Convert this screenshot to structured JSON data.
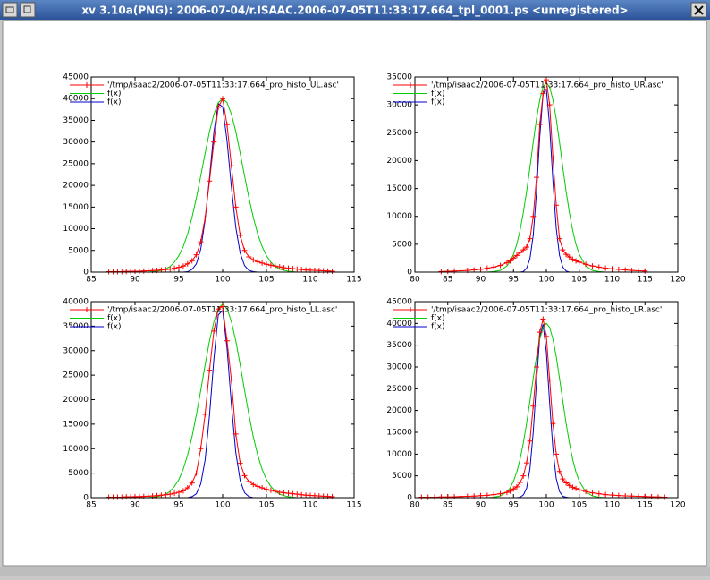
{
  "window": {
    "title": "xv 3.10a(PNG): 2006-07-04/r.ISAAC.2006-07-05T11:33:17.664_tpl_0001.ps <unregistered>"
  },
  "chart_data": [
    {
      "type": "line",
      "xlim": [
        85,
        115
      ],
      "xticks": [
        85,
        90,
        95,
        100,
        105,
        110,
        115
      ],
      "ylim": [
        0,
        45000
      ],
      "yticks": [
        0,
        5000,
        10000,
        15000,
        20000,
        25000,
        30000,
        35000,
        40000,
        45000
      ],
      "x": [
        87,
        87.5,
        88,
        88.5,
        89,
        89.5,
        90,
        90.5,
        91,
        91.5,
        92,
        92.5,
        93,
        93.5,
        94,
        94.5,
        95,
        95.5,
        96,
        96.5,
        97,
        97.5,
        98,
        98.5,
        99,
        99.5,
        100,
        100.5,
        101,
        101.5,
        102,
        102.5,
        103,
        103.5,
        104,
        104.5,
        105,
        105.5,
        106,
        106.5,
        107,
        107.5,
        108,
        108.5,
        109,
        109.5,
        110,
        110.5,
        111,
        111.5,
        112,
        112.5
      ],
      "series": [
        {
          "name": "'/tmp/isaac2/2006-07-05T11:33:17.664_pro_histo_UL.asc'",
          "color": "#ff0000",
          "marker": "+",
          "values": [
            100,
            100,
            100,
            100,
            150,
            150,
            200,
            200,
            250,
            300,
            350,
            400,
            500,
            600,
            700,
            900,
            1100,
            1400,
            1900,
            2600,
            4000,
            7000,
            12500,
            21000,
            30000,
            38000,
            40000,
            34000,
            24500,
            15000,
            8500,
            5000,
            3500,
            2800,
            2400,
            2100,
            1800,
            1600,
            1400,
            1200,
            1000,
            900,
            800,
            700,
            600,
            500,
            450,
            400,
            350,
            300,
            250,
            200
          ]
        },
        {
          "name": "f(x)",
          "color": "#00cc00",
          "values": [
            0,
            0,
            0,
            0,
            0,
            0,
            0,
            0,
            0,
            0,
            100,
            200,
            400,
            700,
            1300,
            2300,
            3800,
            5900,
            8800,
            12600,
            17100,
            22200,
            27400,
            32400,
            36400,
            39100,
            40000,
            39100,
            36400,
            32400,
            27400,
            22200,
            17100,
            12600,
            8800,
            5900,
            3800,
            2300,
            1300,
            700,
            400,
            200,
            100,
            0,
            0,
            0,
            0,
            0,
            0,
            0,
            0,
            0
          ]
        },
        {
          "name": "f(x)",
          "color": "#0000cc",
          "values": [
            0,
            0,
            0,
            0,
            0,
            0,
            0,
            0,
            0,
            0,
            0,
            0,
            0,
            0,
            0,
            0,
            0,
            0,
            100,
            600,
            1900,
            5300,
            12000,
            21800,
            32300,
            38900,
            38100,
            30300,
            19600,
            10300,
            4400,
            1500,
            400,
            100,
            0,
            0,
            0,
            0,
            0,
            0,
            0,
            0,
            0,
            0,
            0,
            0,
            0,
            0,
            0,
            0,
            0,
            0
          ]
        }
      ]
    },
    {
      "type": "line",
      "xlim": [
        80,
        120
      ],
      "xticks": [
        80,
        85,
        90,
        95,
        100,
        105,
        110,
        115,
        120
      ],
      "ylim": [
        0,
        35000
      ],
      "yticks": [
        0,
        5000,
        10000,
        15000,
        20000,
        25000,
        30000,
        35000
      ],
      "x": [
        84,
        85,
        86,
        87,
        88,
        89,
        90,
        91,
        92,
        93,
        94,
        94.5,
        95,
        95.5,
        96,
        96.5,
        97,
        97.5,
        98,
        98.5,
        99,
        99.5,
        100,
        100.5,
        101,
        101.5,
        102,
        102.5,
        103,
        103.5,
        104,
        104.5,
        105,
        106,
        107,
        108,
        109,
        110,
        111,
        112,
        113,
        114,
        115
      ],
      "series": [
        {
          "name": "'/tmp/isaac2/2006-07-05T11:33:17.664_pro_histo_UR.asc'",
          "color": "#ff0000",
          "marker": "+",
          "values": [
            100,
            150,
            200,
            250,
            300,
            400,
            500,
            700,
            900,
            1200,
            1700,
            2000,
            2500,
            3000,
            3500,
            4000,
            4500,
            6000,
            10000,
            17000,
            26500,
            32000,
            34500,
            30000,
            20500,
            12000,
            6000,
            4000,
            3200,
            2700,
            2300,
            2000,
            1800,
            1400,
            1100,
            900,
            700,
            600,
            500,
            400,
            300,
            250,
            200
          ]
        },
        {
          "name": "f(x)",
          "color": "#00cc00",
          "values": [
            0,
            0,
            0,
            0,
            0,
            0,
            0,
            0,
            100,
            300,
            1100,
            1900,
            3200,
            5000,
            7500,
            10700,
            14500,
            18800,
            23300,
            27500,
            30900,
            33200,
            34000,
            33200,
            30900,
            27500,
            23300,
            18800,
            14500,
            10700,
            7500,
            5000,
            3200,
            1100,
            300,
            100,
            0,
            0,
            0,
            0,
            0,
            0,
            0
          ]
        },
        {
          "name": "f(x)",
          "color": "#0000cc",
          "values": [
            0,
            0,
            0,
            0,
            0,
            0,
            0,
            0,
            0,
            0,
            0,
            0,
            0,
            0,
            0,
            100,
            700,
            2400,
            6600,
            14400,
            24300,
            32000,
            32800,
            26200,
            16300,
            7900,
            3000,
            900,
            200,
            0,
            0,
            0,
            0,
            0,
            0,
            0,
            0,
            0,
            0,
            0,
            0,
            0,
            0
          ]
        }
      ]
    },
    {
      "type": "line",
      "xlim": [
        85,
        115
      ],
      "xticks": [
        85,
        90,
        95,
        100,
        105,
        110,
        115
      ],
      "ylim": [
        0,
        40000
      ],
      "yticks": [
        0,
        5000,
        10000,
        15000,
        20000,
        25000,
        30000,
        35000,
        40000
      ],
      "x": [
        87,
        87.5,
        88,
        88.5,
        89,
        89.5,
        90,
        90.5,
        91,
        91.5,
        92,
        92.5,
        93,
        93.5,
        94,
        94.5,
        95,
        95.5,
        96,
        96.5,
        97,
        97.5,
        98,
        98.5,
        99,
        99.5,
        100,
        100.5,
        101,
        101.5,
        102,
        102.5,
        103,
        103.5,
        104,
        104.5,
        105,
        105.5,
        106,
        106.5,
        107,
        107.5,
        108,
        108.5,
        109,
        109.5,
        110,
        110.5,
        111,
        111.5,
        112,
        112.5
      ],
      "series": [
        {
          "name": "'/tmp/isaac2/2006-07-05T11:33:17.664_pro_histo_LL.asc'",
          "color": "#ff0000",
          "marker": "+",
          "values": [
            100,
            100,
            100,
            100,
            150,
            150,
            200,
            200,
            250,
            300,
            350,
            400,
            500,
            600,
            700,
            900,
            1100,
            1400,
            2000,
            3000,
            5000,
            10000,
            17000,
            26000,
            34000,
            38500,
            39000,
            32000,
            24000,
            13000,
            7000,
            4500,
            3300,
            2700,
            2300,
            2000,
            1700,
            1500,
            1300,
            1100,
            1000,
            900,
            800,
            700,
            600,
            500,
            450,
            400,
            350,
            300,
            250,
            200
          ]
        },
        {
          "name": "f(x)",
          "color": "#00cc00",
          "values": [
            0,
            0,
            0,
            0,
            0,
            0,
            0,
            0,
            0,
            0,
            100,
            200,
            400,
            700,
            1300,
            2300,
            3700,
            5800,
            8700,
            12400,
            16900,
            21900,
            27100,
            32000,
            35900,
            38600,
            39500,
            38600,
            35900,
            32000,
            27100,
            21900,
            16900,
            12400,
            8700,
            5800,
            3700,
            2300,
            1300,
            700,
            400,
            200,
            100,
            0,
            0,
            0,
            0,
            0,
            0,
            0,
            0,
            0
          ]
        },
        {
          "name": "f(x)",
          "color": "#0000cc",
          "values": [
            0,
            0,
            0,
            0,
            0,
            0,
            0,
            0,
            0,
            0,
            0,
            0,
            0,
            0,
            0,
            0,
            0,
            0,
            0,
            200,
            800,
            2800,
            7700,
            16800,
            28300,
            37300,
            38200,
            30500,
            19000,
            9200,
            3500,
            1000,
            200,
            0,
            0,
            0,
            0,
            0,
            0,
            0,
            0,
            0,
            0,
            0,
            0,
            0,
            0,
            0,
            0,
            0,
            0,
            0
          ]
        }
      ]
    },
    {
      "type": "line",
      "xlim": [
        80,
        120
      ],
      "xticks": [
        80,
        85,
        90,
        95,
        100,
        105,
        110,
        115,
        120
      ],
      "ylim": [
        0,
        45000
      ],
      "yticks": [
        0,
        5000,
        10000,
        15000,
        20000,
        25000,
        30000,
        35000,
        40000,
        45000
      ],
      "x": [
        81,
        82,
        83,
        84,
        85,
        86,
        87,
        88,
        89,
        90,
        91,
        92,
        93,
        94,
        94.5,
        95,
        95.5,
        96,
        96.5,
        97,
        97.5,
        98,
        98.5,
        99,
        99.5,
        100,
        100.5,
        101,
        101.5,
        102,
        102.5,
        103,
        103.5,
        104,
        104.5,
        105,
        106,
        107,
        108,
        109,
        110,
        111,
        112,
        113,
        114,
        115,
        116,
        117,
        118
      ],
      "series": [
        {
          "name": "'/tmp/isaac2/2006-07-05T11:33:17.664_pro_histo_LR.asc'",
          "color": "#ff0000",
          "marker": "+",
          "values": [
            100,
            100,
            100,
            150,
            150,
            200,
            250,
            300,
            350,
            450,
            550,
            700,
            900,
            1200,
            1500,
            2000,
            2500,
            3500,
            5000,
            8000,
            13000,
            21000,
            30000,
            38000,
            41000,
            37000,
            27000,
            17000,
            10000,
            6000,
            4300,
            3400,
            2800,
            2400,
            2100,
            1800,
            1400,
            1100,
            900,
            700,
            600,
            500,
            400,
            350,
            300,
            250,
            200,
            150,
            100
          ]
        },
        {
          "name": "f(x)",
          "color": "#00cc00",
          "values": [
            0,
            0,
            0,
            0,
            0,
            0,
            0,
            0,
            0,
            0,
            0,
            100,
            400,
            1300,
            2300,
            3800,
            5900,
            8800,
            12600,
            17100,
            22200,
            27400,
            32400,
            36400,
            39100,
            40000,
            39100,
            36400,
            32400,
            27400,
            22200,
            17100,
            12600,
            8800,
            5900,
            3800,
            1300,
            400,
            100,
            0,
            0,
            0,
            0,
            0,
            0,
            0,
            0,
            0,
            0
          ]
        },
        {
          "name": "f(x)",
          "color": "#0000cc",
          "values": [
            0,
            0,
            0,
            0,
            0,
            0,
            0,
            0,
            0,
            0,
            0,
            0,
            0,
            0,
            0,
            0,
            0,
            100,
            600,
            2200,
            6600,
            15000,
            26700,
            36900,
            39800,
            33400,
            21800,
            11100,
            4400,
            1400,
            300,
            100,
            0,
            0,
            0,
            0,
            0,
            0,
            0,
            0,
            0,
            0,
            0,
            0,
            0,
            0,
            0,
            0,
            0
          ]
        }
      ]
    }
  ]
}
